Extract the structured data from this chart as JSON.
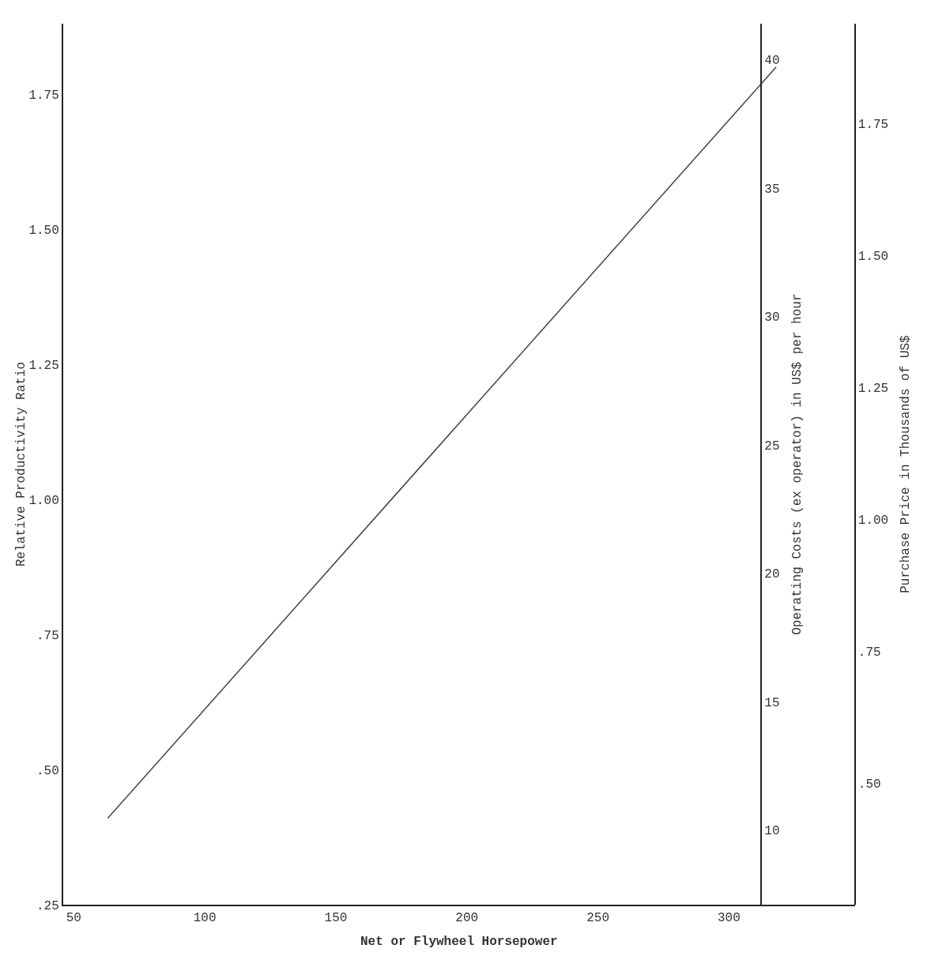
{
  "chart_data": {
    "type": "line",
    "xlabel": "Net or Flywheel Horsepower",
    "ylabel": "Relative Productivity Ratio",
    "y2label": "Operating Costs (ex operator) in US$ per hour",
    "y3label": "Purchase Price in Thousands of US$",
    "x": [
      63,
      318
    ],
    "series": [
      {
        "color": "#444444",
        "values": [
          0.41,
          1.8
        ]
      }
    ],
    "xlim": [
      46,
      348
    ],
    "xticks": [
      50,
      100,
      150,
      200,
      250,
      300
    ],
    "ylim": [
      0.25,
      1.88
    ],
    "yticks": [
      {
        "value": 0.25,
        "label": ".25"
      },
      {
        "value": 0.5,
        "label": ".50"
      },
      {
        "value": 0.75,
        "label": ".75"
      },
      {
        "value": 1.0,
        "label": "1.00"
      },
      {
        "value": 1.25,
        "label": "1.25"
      },
      {
        "value": 1.5,
        "label": "1.50"
      },
      {
        "value": 1.75,
        "label": "1.75"
      }
    ],
    "y2lim": [
      7.1,
      41.4
    ],
    "y2ticks": [
      10,
      15,
      20,
      25,
      30,
      35,
      40
    ],
    "y3lim": [
      0.27,
      1.94
    ],
    "y3ticks": [
      {
        "value": 0.5,
        "label": ".50"
      },
      {
        "value": 0.75,
        "label": ".75"
      },
      {
        "value": 1.0,
        "label": "1.00"
      },
      {
        "value": 1.25,
        "label": "1.25"
      },
      {
        "value": 1.5,
        "label": "1.50"
      },
      {
        "value": 1.75,
        "label": "1.75"
      }
    ],
    "marker": "none",
    "line_style": "solid"
  }
}
